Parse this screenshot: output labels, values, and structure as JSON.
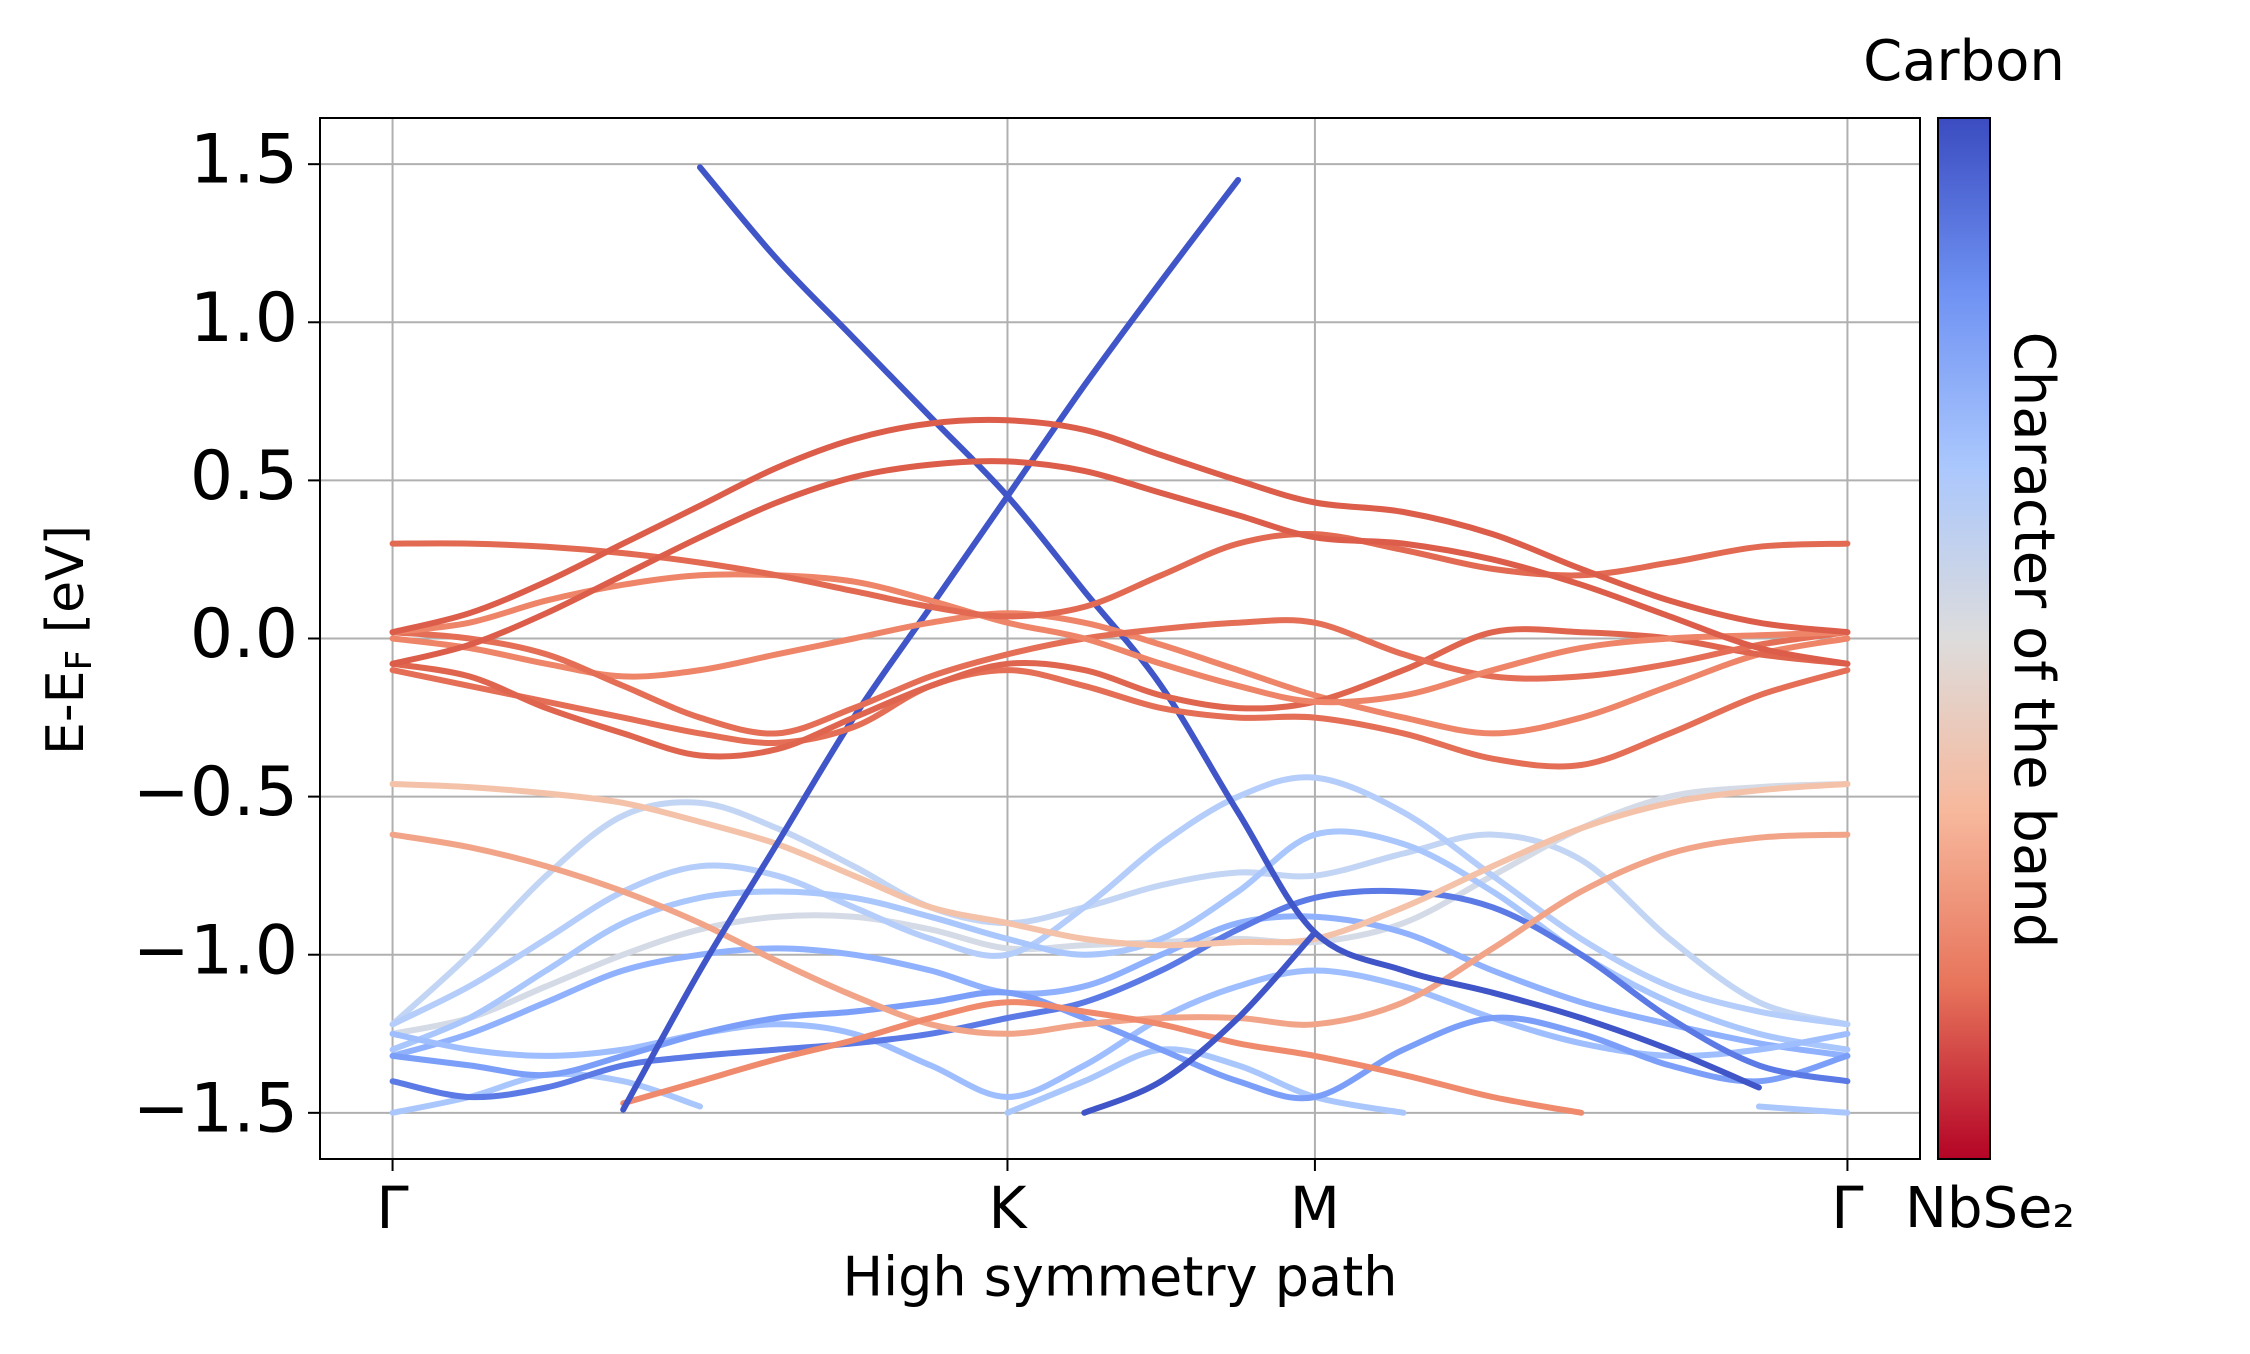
{
  "chart_data": {
    "type": "line",
    "ylabel": {
      "main": "E-E",
      "sub": "F",
      "suffix": " [eV]"
    },
    "xlabel": "High symmetry path",
    "x": [
      0,
      0.125,
      0.25,
      0.375,
      0.5,
      0.625,
      0.75,
      0.875,
      1.0,
      1.125,
      1.25,
      1.375,
      1.5,
      1.644,
      1.789,
      1.933,
      2.077,
      2.222,
      2.366
    ],
    "xlim": [
      -0.118,
      2.484
    ],
    "xticks": [
      {
        "value": 0,
        "label": "Γ"
      },
      {
        "value": 1.0,
        "label": "K"
      },
      {
        "value": 1.5,
        "label": "M"
      },
      {
        "value": 2.366,
        "label": "Γ"
      }
    ],
    "ylim": [
      -1.646,
      1.646
    ],
    "yticks": [
      {
        "value": -1.5,
        "label": "−1.5"
      },
      {
        "value": -1.0,
        "label": "−1.0"
      },
      {
        "value": -0.5,
        "label": "−0.5"
      },
      {
        "value": 0.0,
        "label": "0.0"
      },
      {
        "value": 0.5,
        "label": "0.5"
      },
      {
        "value": 1.0,
        "label": "1.0"
      },
      {
        "value": 1.5,
        "label": "1.5"
      }
    ],
    "grid": true,
    "colorbar": {
      "top_label": "Carbon",
      "bottom_label": "NbSe₂",
      "label": "Character of the band",
      "colors": [
        "#3b4cc0",
        "#6f92f3",
        "#aac7fd",
        "#dddcdc",
        "#f7b89c",
        "#e7745b",
        "#b40426"
      ]
    },
    "series": [
      {
        "color": "#c3d5f4",
        "values": [
          -1.22,
          -1.0,
          -0.75,
          -0.56,
          -0.52,
          -0.6,
          -0.72,
          -0.85,
          -0.9,
          -0.85,
          -0.78,
          -0.74,
          -0.75,
          -0.68,
          -0.62,
          -0.7,
          -0.95,
          -1.15,
          -1.22
        ]
      },
      {
        "color": "#d4dbe6",
        "values": [
          -1.25,
          -1.2,
          -1.1,
          -1.0,
          -0.92,
          -0.88,
          -0.88,
          -0.92,
          -0.98,
          -0.97,
          -0.96,
          -0.95,
          -0.96,
          -0.9,
          -0.75,
          -0.6,
          -0.5,
          -0.47,
          -0.46
        ]
      },
      {
        "color": "#b4cdfa",
        "values": [
          -1.22,
          -1.1,
          -0.95,
          -0.8,
          -0.72,
          -0.75,
          -0.85,
          -0.95,
          -1.0,
          -0.85,
          -0.65,
          -0.5,
          -0.44,
          -0.55,
          -0.75,
          -0.95,
          -1.1,
          -1.18,
          -1.22
        ]
      },
      {
        "color": "#a9c6fd",
        "values": [
          -1.3,
          -1.2,
          -1.05,
          -0.9,
          -0.82,
          -0.8,
          -0.82,
          -0.88,
          -0.95,
          -1.0,
          -0.95,
          -0.8,
          -0.62,
          -0.65,
          -0.8,
          -1.0,
          -1.15,
          -1.25,
          -1.3
        ]
      },
      {
        "color": "#8fb1fe",
        "values": [
          -1.32,
          -1.25,
          -1.15,
          -1.05,
          -1.0,
          -0.98,
          -1.0,
          -1.05,
          -1.12,
          -1.1,
          -1.0,
          -0.9,
          -0.88,
          -0.93,
          -1.05,
          -1.15,
          -1.22,
          -1.28,
          -1.32
        ]
      },
      {
        "color": "#9ebeff",
        "values": [
          -1.25,
          -1.3,
          -1.32,
          -1.3,
          -1.25,
          -1.22,
          -1.25,
          -1.35,
          -1.45,
          -1.35,
          -1.2,
          -1.1,
          -1.05,
          -1.1,
          -1.2,
          -1.28,
          -1.32,
          -1.3,
          -1.25
        ]
      },
      {
        "color": "#aac7fd",
        "values": [
          -1.5,
          -1.45,
          -1.38,
          -1.4,
          -1.48,
          null,
          null,
          null,
          -1.5,
          -1.4,
          -1.3,
          -1.35,
          -1.45,
          -1.5,
          null,
          null,
          null,
          -1.48,
          -1.5
        ]
      },
      {
        "color": "#7b9ff9",
        "values": [
          -1.32,
          -1.35,
          -1.38,
          -1.32,
          -1.25,
          -1.2,
          -1.18,
          -1.15,
          -1.12,
          -1.2,
          -1.3,
          -1.4,
          -1.45,
          -1.3,
          -1.2,
          -1.25,
          -1.35,
          -1.4,
          -1.32
        ]
      },
      {
        "color": "#5b7ae5",
        "values": [
          -1.4,
          -1.45,
          -1.42,
          -1.35,
          -1.32,
          -1.3,
          -1.28,
          -1.25,
          -1.2,
          -1.15,
          -1.05,
          -0.92,
          -0.82,
          -0.8,
          -0.85,
          -1.0,
          -1.2,
          -1.35,
          -1.4
        ]
      },
      {
        "color": "#f4c1a9",
        "values": [
          -0.46,
          -0.47,
          -0.49,
          -0.52,
          -0.58,
          -0.65,
          -0.75,
          -0.85,
          -0.9,
          -0.95,
          -0.97,
          -0.96,
          -0.95,
          -0.85,
          -0.72,
          -0.6,
          -0.52,
          -0.48,
          -0.46
        ]
      },
      {
        "color": "#f2a488",
        "values": [
          -0.62,
          -0.66,
          -0.72,
          -0.8,
          -0.9,
          -1.02,
          -1.13,
          -1.22,
          -1.25,
          -1.22,
          -1.2,
          -1.2,
          -1.22,
          -1.15,
          -0.98,
          -0.8,
          -0.68,
          -0.63,
          -0.62
        ]
      },
      {
        "color": "#ef8a6d",
        "values": [
          null,
          null,
          null,
          -1.47,
          -1.4,
          -1.33,
          -1.27,
          -1.2,
          -1.15,
          -1.18,
          -1.22,
          -1.28,
          -1.32,
          -1.38,
          -1.45,
          -1.5,
          null,
          null,
          null
        ]
      },
      {
        "color": "#3f55c8",
        "values": [
          null,
          null,
          null,
          null,
          1.49,
          1.2,
          0.95,
          0.7,
          0.45,
          0.15,
          -0.15,
          -0.55,
          -0.93,
          -1.05,
          -1.12,
          -1.2,
          -1.3,
          -1.42,
          null
        ]
      },
      {
        "color": "#3f55c8",
        "values": [
          null,
          null,
          null,
          -1.49,
          -1.05,
          -0.65,
          -0.25,
          0.1,
          0.45,
          0.8,
          1.13,
          1.45,
          null,
          null,
          null,
          null,
          null,
          null,
          null
        ]
      },
      {
        "color": "#3f55c8",
        "values": [
          null,
          null,
          null,
          null,
          null,
          null,
          null,
          null,
          null,
          -1.5,
          -1.4,
          -1.2,
          -0.93,
          null,
          null,
          null,
          null,
          null,
          null
        ]
      },
      {
        "color": "#ee8468",
        "values": [
          0.0,
          -0.03,
          -0.08,
          -0.12,
          -0.1,
          -0.05,
          0.0,
          0.05,
          0.08,
          0.05,
          -0.02,
          -0.1,
          -0.18,
          -0.25,
          -0.3,
          -0.25,
          -0.15,
          -0.05,
          0.0
        ]
      },
      {
        "color": "#e46f56",
        "values": [
          -0.1,
          -0.15,
          -0.2,
          -0.25,
          -0.3,
          -0.33,
          -0.28,
          -0.15,
          -0.1,
          -0.15,
          -0.22,
          -0.25,
          -0.25,
          -0.3,
          -0.38,
          -0.4,
          -0.3,
          -0.18,
          -0.1
        ]
      },
      {
        "color": "#e0654f",
        "values": [
          -0.08,
          -0.12,
          -0.22,
          -0.3,
          -0.37,
          -0.35,
          -0.25,
          -0.15,
          -0.08,
          -0.1,
          -0.18,
          -0.22,
          -0.2,
          -0.1,
          0.02,
          0.02,
          0.0,
          -0.05,
          -0.08
        ]
      },
      {
        "color": "#e46f56",
        "values": [
          0.02,
          0.0,
          -0.05,
          -0.15,
          -0.25,
          -0.3,
          -0.22,
          -0.12,
          -0.05,
          0.0,
          0.03,
          0.05,
          0.05,
          -0.05,
          -0.12,
          -0.12,
          -0.08,
          -0.02,
          0.02
        ]
      },
      {
        "color": "#ee8468",
        "values": [
          0.02,
          0.05,
          0.12,
          0.17,
          0.2,
          0.2,
          0.18,
          0.12,
          0.05,
          0.0,
          -0.08,
          -0.15,
          -0.2,
          -0.18,
          -0.1,
          -0.03,
          0.0,
          0.01,
          0.02
        ]
      },
      {
        "color": "#e36a52",
        "values": [
          0.3,
          0.3,
          0.29,
          0.27,
          0.24,
          0.2,
          0.15,
          0.1,
          0.07,
          0.1,
          0.2,
          0.3,
          0.33,
          0.28,
          0.22,
          0.2,
          0.24,
          0.29,
          0.3
        ]
      },
      {
        "color": "#dc5d4a",
        "values": [
          -0.08,
          -0.02,
          0.08,
          0.2,
          0.32,
          0.43,
          0.51,
          0.55,
          0.56,
          0.53,
          0.46,
          0.39,
          0.32,
          0.3,
          0.25,
          0.17,
          0.07,
          -0.03,
          -0.08
        ]
      },
      {
        "color": "#dc5d4a",
        "values": [
          0.02,
          0.08,
          0.18,
          0.3,
          0.42,
          0.54,
          0.63,
          0.68,
          0.69,
          0.66,
          0.58,
          0.5,
          0.43,
          0.4,
          0.33,
          0.22,
          0.12,
          0.05,
          0.02
        ]
      }
    ]
  }
}
